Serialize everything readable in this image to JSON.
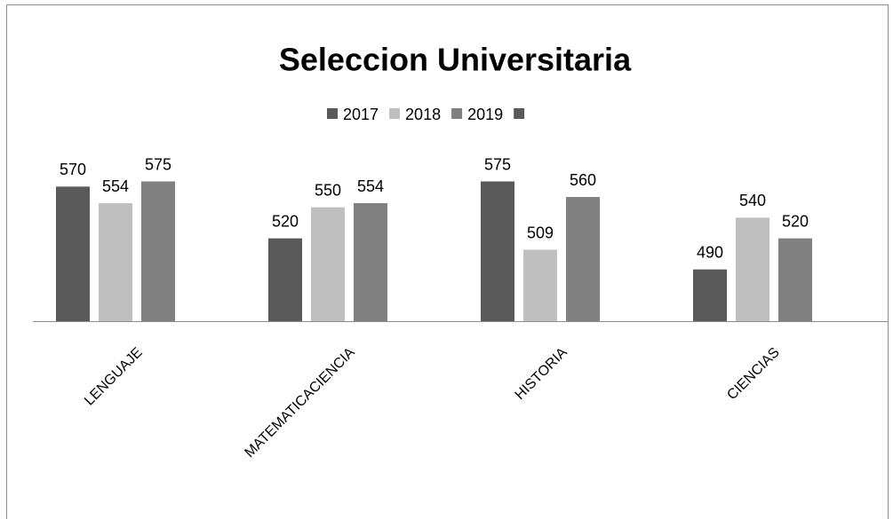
{
  "chart_data": {
    "type": "bar",
    "title": "Seleccion Universitaria",
    "categories": [
      "LENGUAJE",
      "MATEMATICACIENCIA",
      "HISTORIA",
      "CIENCIAS"
    ],
    "series": [
      {
        "name": "2017",
        "color": "#595959",
        "values": [
          570,
          520,
          575,
          490
        ]
      },
      {
        "name": "2018",
        "color": "#bfbfbf",
        "values": [
          554,
          550,
          509,
          540
        ]
      },
      {
        "name": "2019",
        "color": "#808080",
        "values": [
          575,
          554,
          560,
          520
        ]
      },
      {
        "name": null,
        "color": "#595959",
        "values": [
          null,
          null,
          null,
          null
        ]
      }
    ],
    "ylim": [
      440,
      620
    ],
    "legend": "top"
  }
}
